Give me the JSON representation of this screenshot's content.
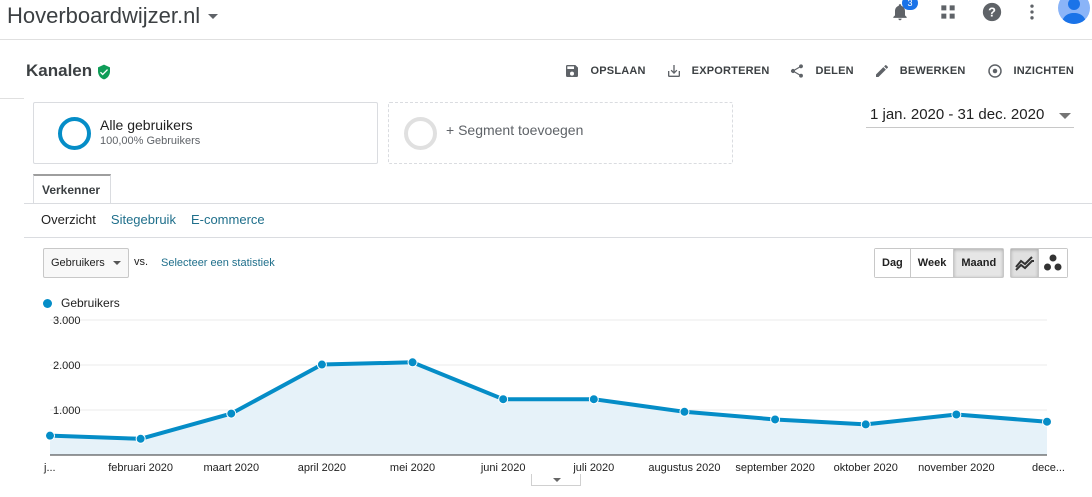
{
  "topbar": {
    "property_name": "Hoverboardwijzer.nl",
    "notification_count": "3"
  },
  "report": {
    "title": "Kanalen",
    "actions": {
      "save": "OPSLAAN",
      "export": "EXPORTEREN",
      "share": "DELEN",
      "edit": "BEWERKEN",
      "insights": "INZICHTEN"
    }
  },
  "segments": {
    "primary_name": "Alle gebruikers",
    "primary_sub": "100,00% Gebruikers",
    "add_label": "+ Segment toevoegen"
  },
  "date_range": "1 jan. 2020 - 31 dec. 2020",
  "explorer": {
    "tab_label": "Verkenner",
    "subtabs": [
      "Overzicht",
      "Sitegebruik",
      "E-commerce"
    ]
  },
  "metric": {
    "selected": "Gebruikers",
    "vs": "vs.",
    "select_stat": "Selecteer een statistiek"
  },
  "period_buttons": [
    "Dag",
    "Week",
    "Maand"
  ],
  "active_period": "Maand",
  "colors": {
    "series": "#058dc7",
    "area": "#e6f2f9",
    "link": "#1f6f8b"
  },
  "chart_data": {
    "type": "line",
    "categories": [
      "j...",
      "februari 2020",
      "maart 2020",
      "april 2020",
      "mei 2020",
      "juni 2020",
      "juli 2020",
      "augustus 2020",
      "september 2020",
      "oktober 2020",
      "november 2020",
      "dece..."
    ],
    "series": [
      {
        "name": "Gebruikers",
        "values": [
          430,
          360,
          920,
          2010,
          2060,
          1240,
          1240,
          960,
          790,
          680,
          900,
          740
        ]
      }
    ],
    "y_ticks": [
      "1.000",
      "2.000",
      "3.000"
    ],
    "ylim": [
      0,
      3000
    ],
    "grid": true,
    "legend": "top-left",
    "area_fill": true
  }
}
